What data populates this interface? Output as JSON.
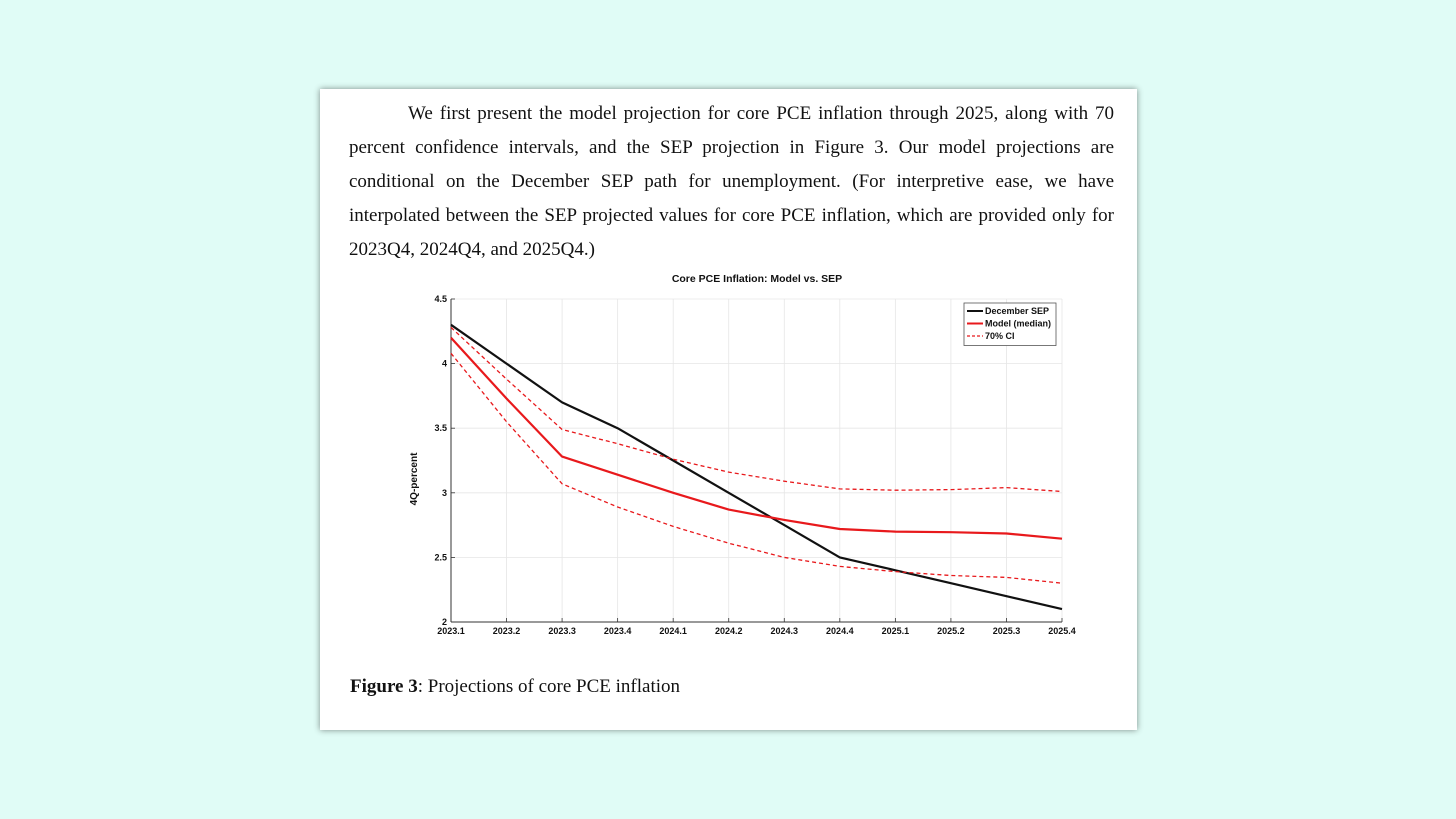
{
  "paragraph": "We first present the model projection for core PCE inflation through 2025, along with 70 percent confidence intervals, and the SEP projection in Figure 3. Our model projections are conditional on the December SEP path for unemployment. (For interpretive ease, we have interpolated between the SEP projected values for core PCE inflation, which are provided only for 2023Q4, 2024Q4, and 2025Q4.)",
  "caption": {
    "label": "Figure 3",
    "text": ": Projections of core PCE inflation"
  },
  "chart_data": {
    "type": "line",
    "title": "Core PCE Inflation: Model vs. SEP",
    "xlabel": "",
    "ylabel": "4Q-percent",
    "x": [
      "2023.1",
      "2023.2",
      "2023.3",
      "2023.4",
      "2024.1",
      "2024.2",
      "2024.3",
      "2024.4",
      "2025.1",
      "2025.2",
      "2025.3",
      "2025.4"
    ],
    "ylim": [
      2,
      4.5
    ],
    "yticks": [
      "2",
      "2.5",
      "3",
      "3.5",
      "4",
      "4.5"
    ],
    "grid": true,
    "legend_position": "top-right",
    "series": [
      {
        "name": "December SEP",
        "color": "#111111",
        "dash": false,
        "lw": 2.2,
        "values": [
          4.3,
          4.0,
          3.7,
          3.5,
          3.25,
          3.0,
          2.75,
          2.5,
          2.4,
          2.3,
          2.2,
          2.1
        ]
      },
      {
        "name": "Model (median)",
        "color": "#e8191c",
        "dash": false,
        "lw": 2.2,
        "values": [
          4.2,
          3.73,
          3.28,
          3.14,
          3.0,
          2.87,
          2.79,
          2.72,
          2.7,
          2.695,
          2.685,
          2.645
        ]
      },
      {
        "name": "70% CI",
        "color": "#e8191c",
        "dash": true,
        "lw": 1.3,
        "values": [
          4.28,
          3.88,
          3.49,
          3.38,
          3.26,
          3.16,
          3.09,
          3.03,
          3.02,
          3.025,
          3.04,
          3.01
        ]
      },
      {
        "name": "",
        "color": "#e8191c",
        "dash": true,
        "lw": 1.3,
        "legend": false,
        "values": [
          4.08,
          3.55,
          3.07,
          2.89,
          2.74,
          2.61,
          2.5,
          2.43,
          2.39,
          2.36,
          2.345,
          2.3
        ]
      }
    ]
  }
}
